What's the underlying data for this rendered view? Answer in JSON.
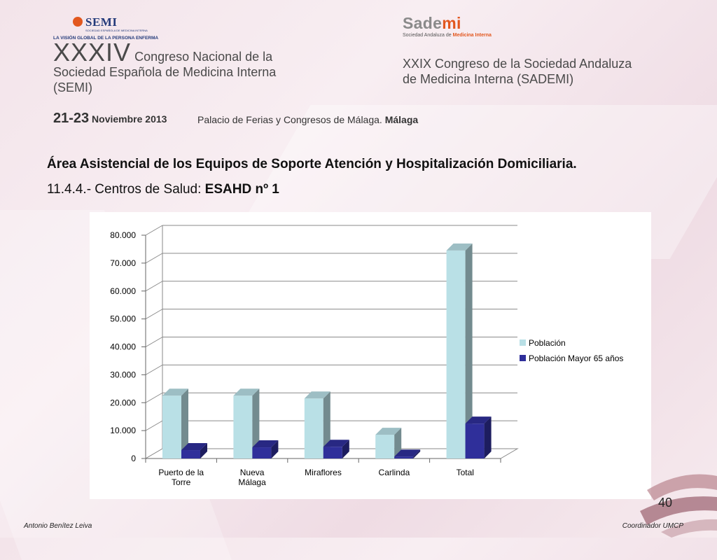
{
  "header": {
    "semi_logo_text": "SEMI",
    "semi_logo_small": "SOCIEDAD ESPAÑOLA DE MEDICINA INTERNA",
    "semi_tagline": "LA VISIÓN GLOBAL DE LA PERSONA ENFERMA",
    "sademi_logo_word": "Sade",
    "sademi_logo_mi": "mi",
    "sademi_sub_prefix": "Sociedad Andaluza de ",
    "sademi_sub_highlight": "Medicina Interna",
    "left_title_roman": "XXXIV",
    "left_title_rest": " Congreso Nacional de la",
    "left_title_line2": "Sociedad Española de Medicina Interna",
    "left_title_line3": "(SEMI)",
    "right_title_line1": "XXIX Congreso de la Sociedad Andaluza",
    "right_title_line2": "de Medicina Interna (SADEMI)",
    "date_days": "21-23",
    "date_month": " Noviembre 2013",
    "venue": "Palacio de Ferias y Congresos de Málaga. ",
    "venue_city": "Málaga"
  },
  "slide": {
    "title": "Área Asistencial de los Equipos de Soporte Atención y Hospitalización Domiciliaria.",
    "subtitle_prefix": "11.4.4.- Centros de Salud: ",
    "subtitle_bold": "ESAHD nº 1"
  },
  "chart_data": {
    "type": "bar",
    "categories": [
      [
        "Puerto de la",
        "Torre"
      ],
      [
        "Nueva",
        "Málaga"
      ],
      [
        "Miraflores"
      ],
      [
        "Carlinda"
      ],
      [
        "Total"
      ]
    ],
    "series": [
      {
        "name": "Población",
        "color": "#b9e0e6",
        "values": [
          22500,
          22500,
          21500,
          8500,
          74500
        ]
      },
      {
        "name": "Población Mayor 65 años",
        "color": "#2f2f9a",
        "values": [
          3000,
          4000,
          4200,
          700,
          12500
        ]
      }
    ],
    "ylim": [
      0,
      80000
    ],
    "yticks": [
      "0",
      "10.000",
      "20.000",
      "30.000",
      "40.000",
      "50.000",
      "60.000",
      "70.000",
      "80.000"
    ],
    "grid": true,
    "legend_position": "right"
  },
  "footer": {
    "page_number": "40",
    "left": "Antonio Benítez Leiva",
    "right": "Coordinador UMCP"
  }
}
